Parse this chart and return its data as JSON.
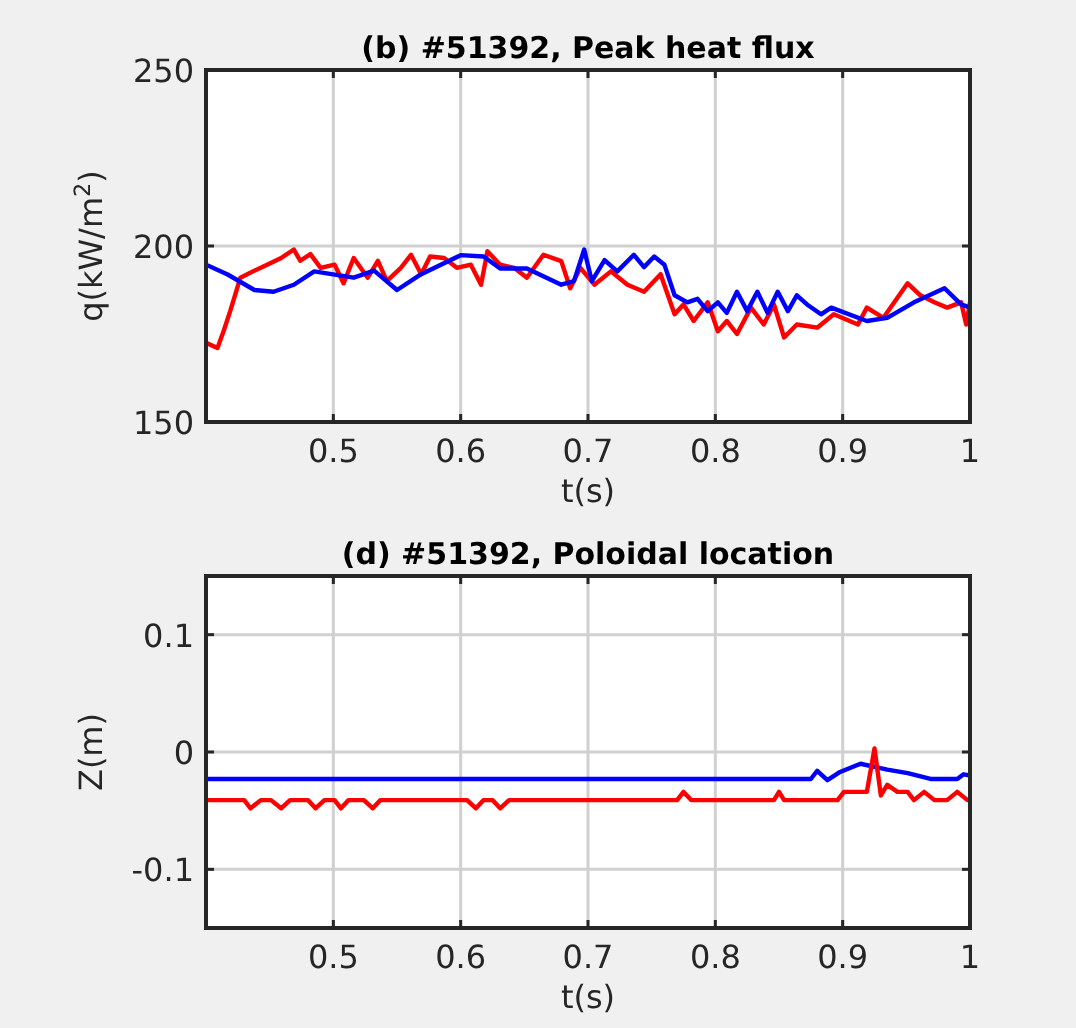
{
  "chart_data": [
    {
      "type": "line",
      "title": "(b) #51392, Peak heat flux",
      "xlabel": "t(s)",
      "ylabel": "q(kW/m$^{2}$)",
      "xlim": [
        0.4,
        1
      ],
      "xticks": [
        0.5,
        0.6,
        0.7,
        0.8,
        0.9,
        1
      ],
      "ylim": [
        150,
        250
      ],
      "yticks": [
        150,
        200,
        250
      ],
      "grid": true,
      "line_style": "solid",
      "series": [
        {
          "color": "#ff0000",
          "x": [
            0.4,
            0.409,
            0.414,
            0.419,
            0.427,
            0.438,
            0.448,
            0.459,
            0.469,
            0.474,
            0.482,
            0.49,
            0.501,
            0.508,
            0.516,
            0.527,
            0.535,
            0.542,
            0.553,
            0.561,
            0.569,
            0.576,
            0.587,
            0.597,
            0.608,
            0.616,
            0.621,
            0.631,
            0.642,
            0.652,
            0.665,
            0.679,
            0.686,
            0.694,
            0.705,
            0.718,
            0.731,
            0.744,
            0.757,
            0.768,
            0.775,
            0.783,
            0.794,
            0.802,
            0.809,
            0.817,
            0.828,
            0.838,
            0.846,
            0.854,
            0.864,
            0.88,
            0.893,
            0.912,
            0.919,
            0.932,
            0.951,
            0.961,
            0.972,
            0.982,
            0.993,
            0.997,
            1.0
          ],
          "values": [
            172.5,
            171,
            176,
            181.5,
            191,
            193,
            194.7,
            196.6,
            199,
            195.8,
            197.7,
            193.8,
            194.7,
            189.4,
            196.6,
            191,
            195.8,
            190,
            193.8,
            197.5,
            192,
            197,
            196.6,
            193.8,
            194.7,
            189,
            198.5,
            194.7,
            193.8,
            191,
            197.5,
            195.7,
            188,
            193.8,
            189,
            192.8,
            189,
            187,
            192,
            180.6,
            183.4,
            178.7,
            184,
            175.8,
            178.7,
            175,
            182.5,
            177.7,
            183.4,
            174,
            177.7,
            176.8,
            180.6,
            177.7,
            182.5,
            179.6,
            189.4,
            186,
            184,
            182.5,
            184,
            177.7,
            184
          ]
        },
        {
          "color": "#0000ff",
          "x": [
            0.4,
            0.417,
            0.438,
            0.453,
            0.469,
            0.485,
            0.516,
            0.532,
            0.55,
            0.569,
            0.6,
            0.618,
            0.631,
            0.652,
            0.679,
            0.689,
            0.697,
            0.703,
            0.713,
            0.723,
            0.736,
            0.744,
            0.752,
            0.76,
            0.768,
            0.778,
            0.786,
            0.794,
            0.802,
            0.809,
            0.817,
            0.825,
            0.833,
            0.841,
            0.849,
            0.857,
            0.864,
            0.872,
            0.883,
            0.891,
            0.919,
            0.935,
            0.956,
            0.98,
            0.993,
            1.0
          ],
          "values": [
            194.7,
            191.9,
            187.5,
            187,
            189,
            192.8,
            191,
            193,
            187.5,
            192,
            197.4,
            197,
            193.6,
            193.6,
            189,
            190,
            199,
            190,
            196,
            192.8,
            197.5,
            194,
            197,
            194.7,
            186,
            184,
            185,
            181.5,
            184,
            181,
            187,
            181.5,
            187,
            181,
            187,
            181.5,
            186,
            183.4,
            180.6,
            182.5,
            178.7,
            179.6,
            184,
            188,
            183.4,
            182.5
          ]
        }
      ]
    },
    {
      "type": "line",
      "title": "(d) #51392, Poloidal location",
      "xlabel": "t(s)",
      "ylabel": "Z(m)",
      "xlim": [
        0.4,
        1
      ],
      "xticks": [
        0.5,
        0.6,
        0.7,
        0.8,
        0.9,
        1
      ],
      "ylim": [
        -0.15,
        0.15
      ],
      "yticks": [
        -0.1,
        0,
        0.1
      ],
      "grid": true,
      "line_style": "solid",
      "series": [
        {
          "color": "#0000ff",
          "x": [
            0.4,
            0.875,
            0.88,
            0.888,
            0.898,
            0.914,
            0.935,
            0.951,
            0.969,
            0.99,
            0.995,
            1.0
          ],
          "values": [
            -0.023,
            -0.023,
            -0.016,
            -0.024,
            -0.017,
            -0.01,
            -0.015,
            -0.018,
            -0.023,
            -0.023,
            -0.019,
            -0.02
          ]
        },
        {
          "color": "#ff0000",
          "x": [
            0.4,
            0.43,
            0.435,
            0.443,
            0.451,
            0.459,
            0.466,
            0.48,
            0.486,
            0.493,
            0.501,
            0.506,
            0.512,
            0.524,
            0.531,
            0.537,
            0.605,
            0.612,
            0.618,
            0.625,
            0.631,
            0.638,
            0.77,
            0.775,
            0.781,
            0.846,
            0.85,
            0.854,
            0.896,
            0.901,
            0.919,
            0.925,
            0.93,
            0.935,
            0.943,
            0.951,
            0.956,
            0.964,
            0.972,
            0.982,
            0.99,
            0.998,
            1.0
          ],
          "values": [
            -0.041,
            -0.041,
            -0.048,
            -0.041,
            -0.041,
            -0.048,
            -0.041,
            -0.041,
            -0.048,
            -0.041,
            -0.041,
            -0.048,
            -0.041,
            -0.041,
            -0.048,
            -0.041,
            -0.041,
            -0.048,
            -0.041,
            -0.041,
            -0.048,
            -0.041,
            -0.041,
            -0.034,
            -0.041,
            -0.041,
            -0.034,
            -0.041,
            -0.041,
            -0.034,
            -0.034,
            0.003,
            -0.037,
            -0.028,
            -0.034,
            -0.034,
            -0.041,
            -0.034,
            -0.041,
            -0.041,
            -0.034,
            -0.041,
            -0.041
          ]
        }
      ]
    }
  ]
}
